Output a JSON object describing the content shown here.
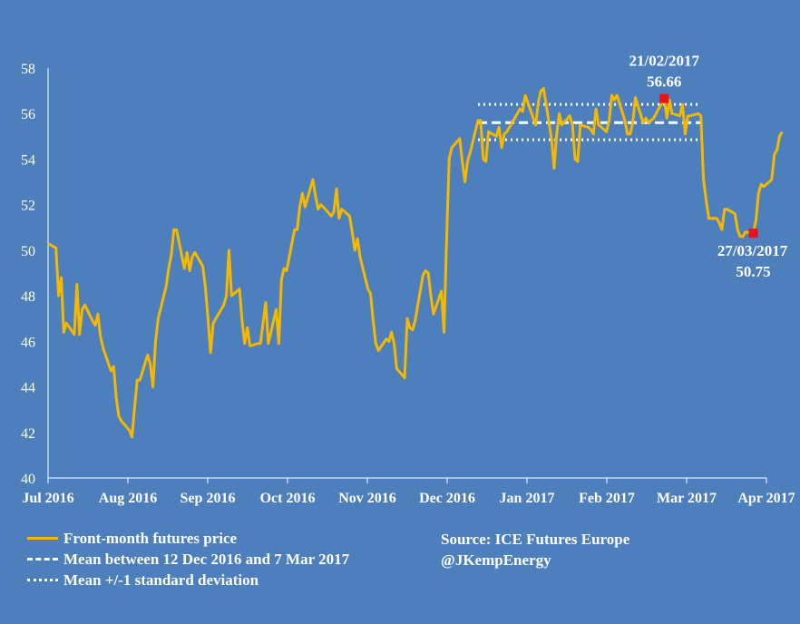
{
  "chart_data": {
    "type": "line",
    "title": "",
    "xlabel": "",
    "ylabel": "",
    "ylim": [
      40,
      58
    ],
    "yticks": [
      40,
      42,
      44,
      46,
      48,
      50,
      52,
      54,
      56,
      58
    ],
    "x_tick_labels": [
      "Jul 2016",
      "Aug 2016",
      "Sep 2016",
      "Oct 2016",
      "Nov 2016",
      "Dec 2016",
      "Jan 2017",
      "Feb 2017",
      "Mar 2017",
      "Apr 2017"
    ],
    "xlim": [
      "2016-07-01",
      "2017-04-01"
    ],
    "grid": false,
    "legend_position": "bottom-left",
    "colors": {
      "background": "#4d7fbd",
      "price": "#f5b800",
      "mean": "#ffffff",
      "marker": "#e8121b"
    },
    "series": [
      {
        "name": "Front-month futures price",
        "points": [
          [
            "2016-07-01",
            50.3
          ],
          [
            "2016-07-04",
            50.1
          ],
          [
            "2016-07-05",
            48.0
          ],
          [
            "2016-07-06",
            48.8
          ],
          [
            "2016-07-07",
            46.4
          ],
          [
            "2016-07-08",
            46.8
          ],
          [
            "2016-07-11",
            46.3
          ],
          [
            "2016-07-12",
            48.5
          ],
          [
            "2016-07-13",
            46.3
          ],
          [
            "2016-07-14",
            47.4
          ],
          [
            "2016-07-15",
            47.6
          ],
          [
            "2016-07-18",
            46.9
          ],
          [
            "2016-07-19",
            46.7
          ],
          [
            "2016-07-20",
            47.2
          ],
          [
            "2016-07-21",
            46.2
          ],
          [
            "2016-07-22",
            45.7
          ],
          [
            "2016-07-25",
            44.7
          ],
          [
            "2016-07-26",
            44.9
          ],
          [
            "2016-07-27",
            43.5
          ],
          [
            "2016-07-28",
            42.7
          ],
          [
            "2016-07-29",
            42.5
          ],
          [
            "2016-08-01",
            42.1
          ],
          [
            "2016-08-02",
            41.8
          ],
          [
            "2016-08-03",
            43.1
          ],
          [
            "2016-08-04",
            44.3
          ],
          [
            "2016-08-05",
            44.3
          ],
          [
            "2016-08-08",
            45.4
          ],
          [
            "2016-08-09",
            45.0
          ],
          [
            "2016-08-10",
            44.0
          ],
          [
            "2016-08-11",
            46.0
          ],
          [
            "2016-08-12",
            47.0
          ],
          [
            "2016-08-15",
            48.4
          ],
          [
            "2016-08-16",
            49.2
          ],
          [
            "2016-08-17",
            49.8
          ],
          [
            "2016-08-18",
            50.9
          ],
          [
            "2016-08-19",
            50.9
          ],
          [
            "2016-08-22",
            49.2
          ],
          [
            "2016-08-23",
            49.9
          ],
          [
            "2016-08-24",
            49.1
          ],
          [
            "2016-08-25",
            49.7
          ],
          [
            "2016-08-26",
            49.9
          ],
          [
            "2016-08-29",
            49.3
          ],
          [
            "2016-08-30",
            48.4
          ],
          [
            "2016-08-31",
            47.0
          ],
          [
            "2016-09-01",
            45.5
          ],
          [
            "2016-09-02",
            46.8
          ],
          [
            "2016-09-05",
            47.4
          ],
          [
            "2016-09-06",
            47.6
          ],
          [
            "2016-09-07",
            48.0
          ],
          [
            "2016-09-08",
            50.0
          ],
          [
            "2016-09-09",
            48.0
          ],
          [
            "2016-09-12",
            48.3
          ],
          [
            "2016-09-13",
            46.9
          ],
          [
            "2016-09-14",
            45.9
          ],
          [
            "2016-09-15",
            46.6
          ],
          [
            "2016-09-16",
            45.8
          ],
          [
            "2016-09-19",
            45.9
          ],
          [
            "2016-09-20",
            45.9
          ],
          [
            "2016-09-21",
            46.8
          ],
          [
            "2016-09-22",
            47.7
          ],
          [
            "2016-09-23",
            45.9
          ],
          [
            "2016-09-26",
            47.4
          ],
          [
            "2016-09-27",
            45.9
          ],
          [
            "2016-09-28",
            48.7
          ],
          [
            "2016-09-29",
            49.2
          ],
          [
            "2016-09-30",
            49.1
          ],
          [
            "2016-10-03",
            50.9
          ],
          [
            "2016-10-04",
            50.9
          ],
          [
            "2016-10-05",
            51.9
          ],
          [
            "2016-10-06",
            52.5
          ],
          [
            "2016-10-07",
            51.9
          ],
          [
            "2016-10-10",
            53.1
          ],
          [
            "2016-10-11",
            52.4
          ],
          [
            "2016-10-12",
            51.8
          ],
          [
            "2016-10-13",
            52.0
          ],
          [
            "2016-10-14",
            51.9
          ],
          [
            "2016-10-17",
            51.5
          ],
          [
            "2016-10-18",
            51.7
          ],
          [
            "2016-10-19",
            52.7
          ],
          [
            "2016-10-20",
            51.4
          ],
          [
            "2016-10-21",
            51.8
          ],
          [
            "2016-10-24",
            51.5
          ],
          [
            "2016-10-25",
            50.8
          ],
          [
            "2016-10-26",
            50.0
          ],
          [
            "2016-10-27",
            50.5
          ],
          [
            "2016-10-28",
            49.7
          ],
          [
            "2016-10-31",
            48.3
          ],
          [
            "2016-11-01",
            48.1
          ],
          [
            "2016-11-02",
            46.9
          ],
          [
            "2016-11-03",
            45.9
          ],
          [
            "2016-11-04",
            45.6
          ],
          [
            "2016-11-07",
            46.1
          ],
          [
            "2016-11-08",
            46.0
          ],
          [
            "2016-11-09",
            46.4
          ],
          [
            "2016-11-10",
            45.9
          ],
          [
            "2016-11-11",
            44.8
          ],
          [
            "2016-11-14",
            44.4
          ],
          [
            "2016-11-15",
            47.0
          ],
          [
            "2016-11-16",
            46.6
          ],
          [
            "2016-11-17",
            46.5
          ],
          [
            "2016-11-18",
            46.9
          ],
          [
            "2016-11-21",
            48.9
          ],
          [
            "2016-11-22",
            49.1
          ],
          [
            "2016-11-23",
            49.0
          ],
          [
            "2016-11-24",
            48.0
          ],
          [
            "2016-11-25",
            47.2
          ],
          [
            "2016-11-28",
            48.2
          ],
          [
            "2016-11-29",
            46.4
          ],
          [
            "2016-11-30",
            50.5
          ],
          [
            "2016-12-01",
            54.0
          ],
          [
            "2016-12-02",
            54.5
          ],
          [
            "2016-12-05",
            54.9
          ],
          [
            "2016-12-06",
            53.9
          ],
          [
            "2016-12-07",
            53.0
          ],
          [
            "2016-12-08",
            53.9
          ],
          [
            "2016-12-09",
            54.3
          ],
          [
            "2016-12-12",
            55.7
          ],
          [
            "2016-12-13",
            55.7
          ],
          [
            "2016-12-14",
            54.0
          ],
          [
            "2016-12-15",
            53.9
          ],
          [
            "2016-12-16",
            55.2
          ],
          [
            "2016-12-19",
            55.0
          ],
          [
            "2016-12-20",
            55.4
          ],
          [
            "2016-12-21",
            54.5
          ],
          [
            "2016-12-22",
            55.1
          ],
          [
            "2016-12-23",
            55.2
          ],
          [
            "2016-12-28",
            56.2
          ],
          [
            "2016-12-29",
            56.1
          ],
          [
            "2016-12-30",
            56.8
          ],
          [
            "2017-01-03",
            55.5
          ],
          [
            "2017-01-04",
            56.5
          ],
          [
            "2017-01-05",
            57.0
          ],
          [
            "2017-01-06",
            57.1
          ],
          [
            "2017-01-09",
            54.9
          ],
          [
            "2017-01-10",
            53.6
          ],
          [
            "2017-01-11",
            55.1
          ],
          [
            "2017-01-12",
            56.0
          ],
          [
            "2017-01-13",
            55.5
          ],
          [
            "2017-01-16",
            55.9
          ],
          [
            "2017-01-17",
            55.5
          ],
          [
            "2017-01-18",
            54.0
          ],
          [
            "2017-01-19",
            53.9
          ],
          [
            "2017-01-20",
            55.5
          ],
          [
            "2017-01-23",
            55.4
          ],
          [
            "2017-01-24",
            55.3
          ],
          [
            "2017-01-25",
            55.1
          ],
          [
            "2017-01-26",
            56.2
          ],
          [
            "2017-01-27",
            55.5
          ],
          [
            "2017-01-30",
            55.2
          ],
          [
            "2017-01-31",
            55.7
          ],
          [
            "2017-02-01",
            56.8
          ],
          [
            "2017-02-02",
            56.6
          ],
          [
            "2017-02-03",
            56.8
          ],
          [
            "2017-02-06",
            55.7
          ],
          [
            "2017-02-07",
            55.1
          ],
          [
            "2017-02-08",
            55.1
          ],
          [
            "2017-02-09",
            55.6
          ],
          [
            "2017-02-10",
            56.7
          ],
          [
            "2017-02-13",
            55.6
          ],
          [
            "2017-02-14",
            55.8
          ],
          [
            "2017-02-15",
            55.6
          ],
          [
            "2017-02-16",
            55.7
          ],
          [
            "2017-02-17",
            55.8
          ],
          [
            "2017-02-21",
            56.66
          ],
          [
            "2017-02-22",
            55.8
          ],
          [
            "2017-02-23",
            56.6
          ],
          [
            "2017-02-24",
            56.0
          ],
          [
            "2017-02-27",
            55.9
          ],
          [
            "2017-02-28",
            56.4
          ],
          [
            "2017-03-01",
            55.1
          ],
          [
            "2017-03-02",
            55.9
          ],
          [
            "2017-03-03",
            55.9
          ],
          [
            "2017-03-06",
            56.0
          ],
          [
            "2017-03-07",
            55.9
          ],
          [
            "2017-03-08",
            53.1
          ],
          [
            "2017-03-09",
            52.2
          ],
          [
            "2017-03-10",
            51.4
          ],
          [
            "2017-03-13",
            51.4
          ],
          [
            "2017-03-14",
            51.2
          ],
          [
            "2017-03-15",
            50.9
          ],
          [
            "2017-03-16",
            51.8
          ],
          [
            "2017-03-17",
            51.8
          ],
          [
            "2017-03-20",
            51.6
          ],
          [
            "2017-03-21",
            50.9
          ],
          [
            "2017-03-22",
            50.6
          ],
          [
            "2017-03-23",
            50.6
          ],
          [
            "2017-03-24",
            50.8
          ],
          [
            "2017-03-27",
            50.75
          ],
          [
            "2017-03-28",
            51.3
          ],
          [
            "2017-03-29",
            52.5
          ],
          [
            "2017-03-30",
            52.9
          ],
          [
            "2017-03-31",
            52.8
          ],
          [
            "2017-04-03",
            53.1
          ],
          [
            "2017-04-04",
            54.2
          ],
          [
            "2017-04-05",
            54.4
          ],
          [
            "2017-04-06",
            55.0
          ],
          [
            "2017-04-07",
            55.2
          ]
        ]
      }
    ],
    "reference_lines": [
      {
        "name": "Mean between 12 Dec 2016 and 7 Mar 2017",
        "style": "dashed",
        "y": 55.6,
        "x_start": "2016-12-12",
        "x_end": "2017-03-07"
      },
      {
        "name": "Mean +/-1 standard deviation (upper)",
        "style": "dotted",
        "y": 56.4,
        "x_start": "2016-12-12",
        "x_end": "2017-03-07"
      },
      {
        "name": "Mean +/-1 standard deviation (lower)",
        "style": "dotted",
        "y": 54.85,
        "x_start": "2016-12-12",
        "x_end": "2017-03-07"
      }
    ],
    "annotations": [
      {
        "date_label": "21/02/2017",
        "value_label": "56.66",
        "x": "2017-02-21",
        "y": 56.66
      },
      {
        "date_label": "27/03/2017",
        "value_label": "50.75",
        "x": "2017-03-27",
        "y": 50.75
      }
    ]
  },
  "legend": {
    "price": "Front-month futures price",
    "mean": "Mean between 12 Dec 2016 and 7 Mar 2017",
    "std": "Mean +/-1 standard deviation"
  },
  "source": {
    "line1": "Source: ICE Futures Europe",
    "line2": "@JKempEnergy"
  }
}
